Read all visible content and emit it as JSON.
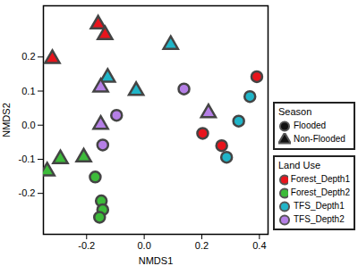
{
  "chart_data": {
    "type": "scatter",
    "x_label": "NMDS1",
    "y_label": "NMDS2",
    "xlim": [
      -0.35,
      0.43
    ],
    "ylim": [
      -0.32,
      0.35
    ],
    "xticks": [
      -0.2,
      {
        "value": 0,
        "label": "0.0"
      },
      0.2,
      0.4
    ],
    "yticks": [
      -0.2,
      -0.1,
      {
        "value": 0,
        "label": "0.0"
      },
      0.1,
      0.2
    ],
    "grid": false,
    "legend": "right",
    "marker_legend_title": "Season",
    "color_legend_title": "Land Use",
    "seasons": [
      {
        "name": "Flooded",
        "marker": "circle"
      },
      {
        "name": "Non-Flooded",
        "marker": "triangle"
      }
    ],
    "series": [
      {
        "name": "Forest_Depth1",
        "color": "#e8141c",
        "x": [
          -0.16,
          -0.136,
          -0.319,
          0.391,
          0.203,
          0.269
        ],
        "y": [
          0.296,
          0.265,
          0.195,
          0.142,
          -0.024,
          -0.06
        ],
        "season": [
          "Non-Flooded",
          "Non-Flooded",
          "Non-Flooded",
          "Flooded",
          "Flooded",
          "Flooded"
        ]
      },
      {
        "name": "Forest_Depth2",
        "color": "#3dbb3a",
        "x": [
          -0.291,
          -0.21,
          -0.337,
          -0.17,
          -0.149,
          -0.144,
          -0.155
        ],
        "y": [
          -0.099,
          -0.094,
          -0.135,
          -0.152,
          -0.222,
          -0.248,
          -0.27
        ],
        "season": [
          "Non-Flooded",
          "Non-Flooded",
          "Non-Flooded",
          "Flooded",
          "Flooded",
          "Flooded",
          "Flooded"
        ]
      },
      {
        "name": "TFS_Depth1",
        "color": "#20b5c8",
        "x": [
          -0.127,
          -0.028,
          0.092,
          0.367,
          0.328,
          0.286
        ],
        "y": [
          0.14,
          0.101,
          0.236,
          0.084,
          0.012,
          -0.094
        ],
        "season": [
          "Non-Flooded",
          "Non-Flooded",
          "Non-Flooded",
          "Flooded",
          "Flooded",
          "Flooded"
        ]
      },
      {
        "name": "TFS_Depth2",
        "color": "#b57fe6",
        "x": [
          -0.151,
          -0.151,
          0.223,
          -0.096,
          -0.144,
          0.138
        ],
        "y": [
          0.111,
          0.002,
          0.036,
          0.029,
          -0.058,
          0.106
        ],
        "season": [
          "Non-Flooded",
          "Non-Flooded",
          "Non-Flooded",
          "Flooded",
          "Flooded",
          "Flooded"
        ]
      }
    ]
  }
}
